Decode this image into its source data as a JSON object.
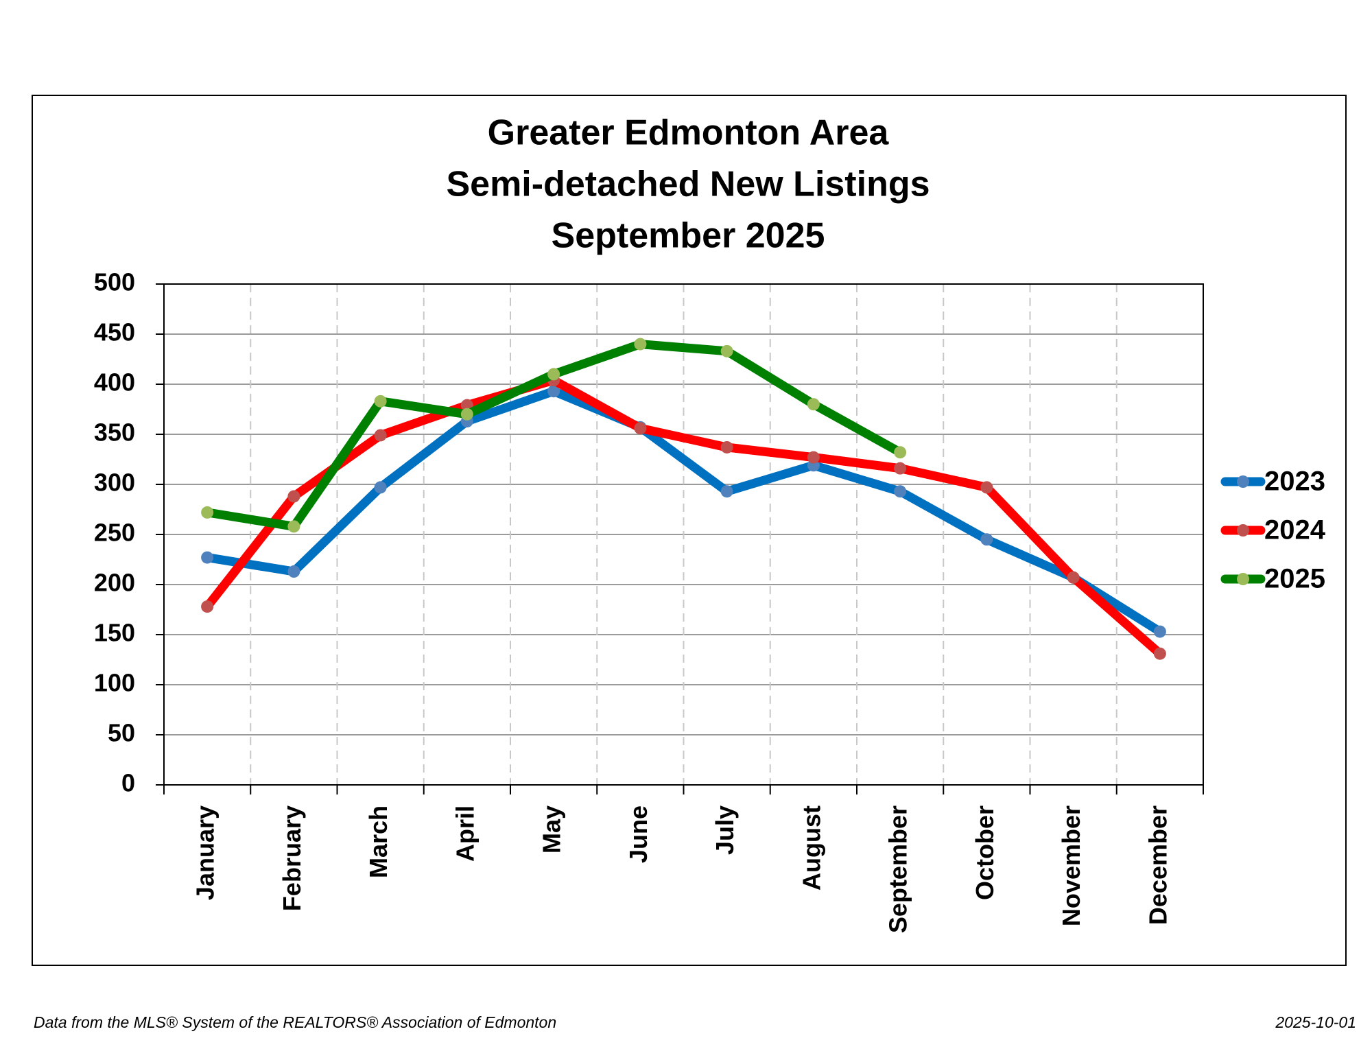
{
  "chart_data": {
    "type": "line",
    "title": [
      "Greater Edmonton Area",
      "Semi-detached New Listings",
      "September 2025"
    ],
    "categories": [
      "January",
      "February",
      "March",
      "April",
      "May",
      "June",
      "July",
      "August",
      "September",
      "October",
      "November",
      "December"
    ],
    "series": [
      {
        "name": "2023",
        "color": "#0070c0",
        "marker_color": "#4f81bd",
        "values": [
          227,
          213,
          297,
          363,
          393,
          357,
          293,
          319,
          293,
          245,
          207,
          153
        ]
      },
      {
        "name": "2024",
        "color": "#ff0000",
        "marker_color": "#c0504d",
        "values": [
          178,
          288,
          349,
          379,
          404,
          356,
          337,
          327,
          316,
          297,
          207,
          131
        ]
      },
      {
        "name": "2025",
        "color": "#008000",
        "marker_color": "#9bbb59",
        "values": [
          272,
          258,
          383,
          370,
          410,
          440,
          433,
          380,
          332,
          null,
          null,
          null
        ]
      }
    ],
    "ylim": [
      0,
      500
    ],
    "yticks": [
      0,
      50,
      100,
      150,
      200,
      250,
      300,
      350,
      400,
      450,
      500
    ],
    "grid": true,
    "legend": "right"
  },
  "footer": {
    "source": "Data from the MLS® System of the REALTORS® Association of Edmonton",
    "date": "2025-10-01"
  }
}
